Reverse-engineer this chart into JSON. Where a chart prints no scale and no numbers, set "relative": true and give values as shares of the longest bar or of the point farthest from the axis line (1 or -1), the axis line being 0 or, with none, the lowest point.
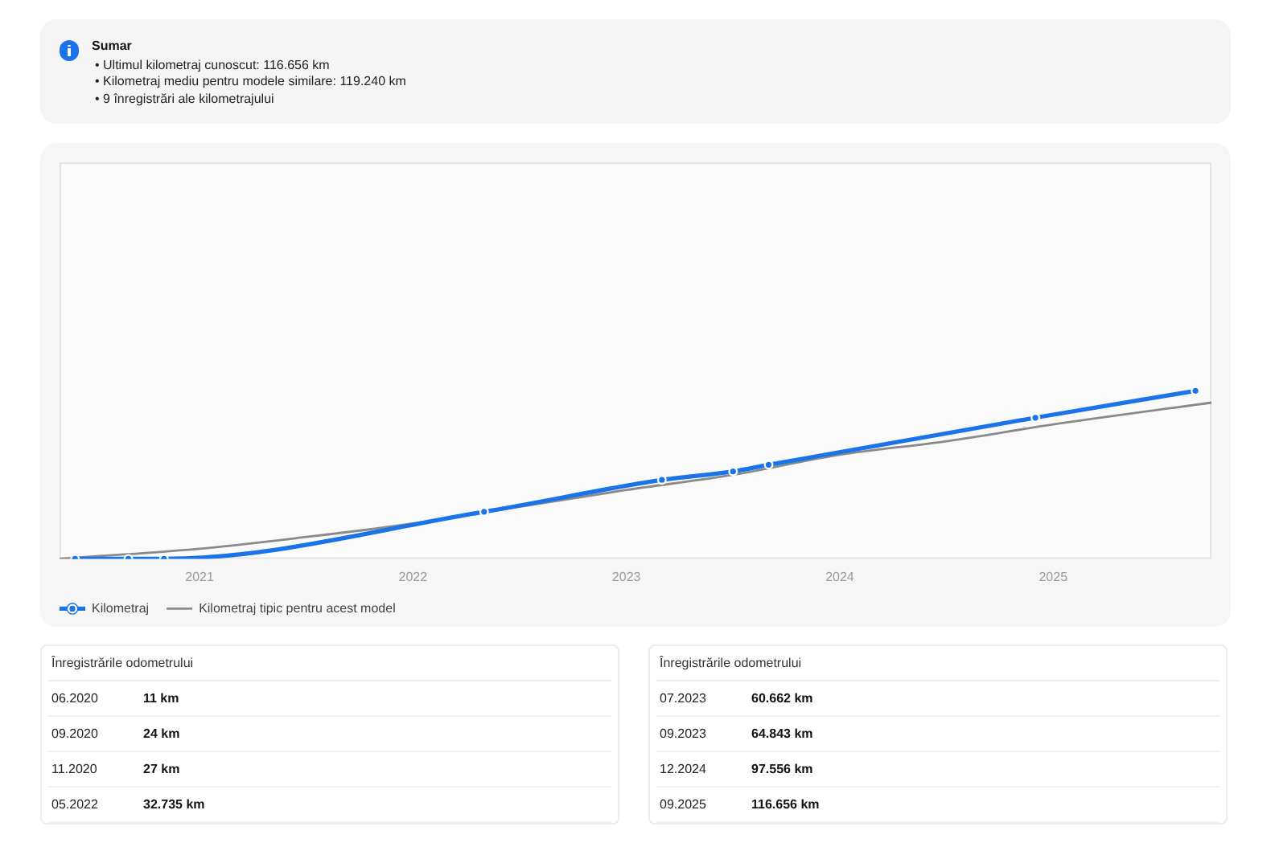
{
  "chart_data": [
    {
      "type": "other",
      "title": "Sumar",
      "annotations": [
        "• Ultimul kilometraj cunoscut: 116.656 km",
        "• Kilometraj mediu pentru modele similare: 119.240 km",
        "• 9 înregistrări ale kilometrajului"
      ]
    },
    {
      "type": "line",
      "relative": true,
      "series": [
        {
          "name": "Kilometraj",
          "color": "#1a73e8",
          "marker": "circle",
          "x": [
            "2020-06",
            "2020-09",
            "2020-11",
            "2022-05",
            "2023-03",
            "2023-07",
            "2023-09",
            "2024-12",
            "2025-09"
          ],
          "values": [
            0,
            0,
            0,
            0.28,
            0.47,
            0.52,
            0.56,
            0.84,
            1
          ]
        },
        {
          "name": "Kilometraj tipic pentru acest model",
          "color": "#8a8a8a",
          "x": [
            "2020-05-05",
            "2021-01",
            "2021-07",
            "2022-01",
            "2022-07",
            "2023-01",
            "2023-07",
            "2024-01",
            "2024-07",
            "2025-01",
            "2025-09-28"
          ],
          "values": [
            0,
            0.06,
            0.13,
            0.21,
            0.31,
            0.41,
            0.5,
            0.62,
            0.7,
            0.8,
            0.93
          ]
        }
      ],
      "xlim": [
        "2020-05-05",
        "2025-09-28"
      ],
      "xticks": [
        "2021",
        "2022",
        "2023",
        "2024",
        "2025"
      ],
      "tick_labels": "x",
      "legend": "bottom left"
    },
    {
      "type": "other",
      "title": "Înregistrările odometrului",
      "annotations": [
        "06.2020",
        "11 km",
        "09.2020",
        "24 km",
        "11.2020",
        "27 km",
        "05.2022",
        "32.735 km"
      ]
    },
    {
      "type": "other",
      "title": "Înregistrările odometrului",
      "annotations": [
        "07.2023",
        "60.662 km",
        "09.2023",
        "64.843 km",
        "12.2024",
        "97.556 km",
        "09.2025",
        "116.656 km"
      ]
    }
  ]
}
